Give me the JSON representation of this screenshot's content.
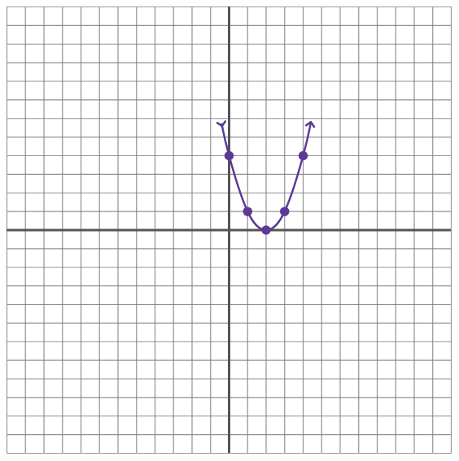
{
  "chart_data": {
    "type": "line",
    "xlim": [
      -12,
      12
    ],
    "ylim": [
      -12,
      12
    ],
    "xticks": [
      -12,
      -11,
      -10,
      -9,
      -8,
      -7,
      -6,
      -5,
      -4,
      -3,
      -2,
      -1,
      0,
      1,
      2,
      3,
      4,
      5,
      6,
      7,
      8,
      9,
      10,
      11,
      12
    ],
    "yticks": [
      -12,
      -11,
      -10,
      -9,
      -8,
      -7,
      -6,
      -5,
      -4,
      -3,
      -2,
      -1,
      0,
      1,
      2,
      3,
      4,
      5,
      6,
      7,
      8,
      9,
      10,
      11,
      12
    ],
    "grid": true,
    "tick_labels": false,
    "series": [
      {
        "type": "line",
        "color": "#5b3a96",
        "marker": "arrow",
        "x": [
          -0.4,
          0,
          1,
          2,
          3,
          4,
          4.4
        ],
        "values": [
          5.7,
          4,
          1,
          0,
          1,
          4,
          5.7
        ]
      },
      {
        "type": "scatter",
        "color": "#5b3a96",
        "marker": "circle",
        "x": [
          0,
          1,
          2,
          3,
          4
        ],
        "values": [
          4,
          1,
          0,
          1,
          4
        ]
      }
    ]
  }
}
